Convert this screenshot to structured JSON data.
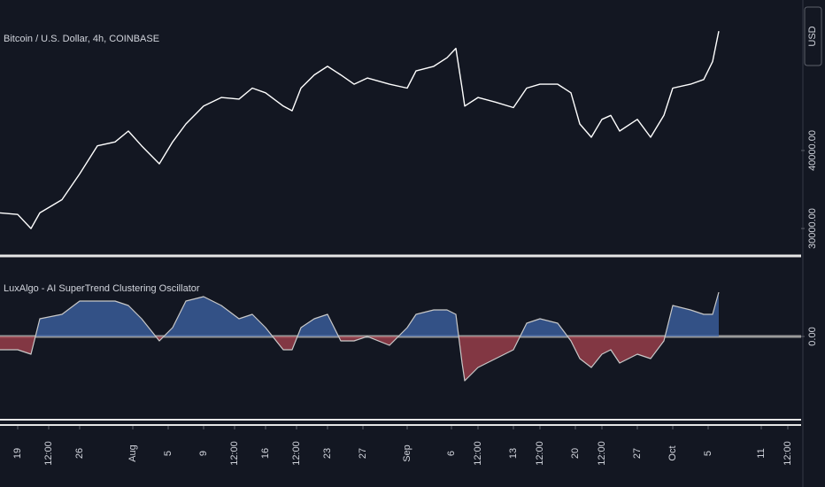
{
  "chart_data": [
    {
      "type": "line",
      "title": "Bitcoin / U.S. Dollar, 4h, COINBASE",
      "y_label": "USD",
      "x": [
        -2,
        0,
        1.5,
        2.5,
        5,
        7,
        9,
        11,
        12.5,
        14,
        16,
        17.5,
        19,
        21,
        23,
        25,
        26.5,
        28,
        30,
        31,
        32,
        33.5,
        35,
        36.5,
        38,
        39.5,
        42,
        44,
        45,
        47,
        48.5,
        49.5,
        50.2,
        50.5,
        52,
        54,
        56,
        57.5,
        59,
        61,
        62.5,
        63.5,
        64.8,
        66,
        67,
        68,
        70,
        71.5,
        73,
        74,
        76,
        77.5,
        78.5,
        79.2
      ],
      "series": [
        {
          "color": "#ffffff",
          "values": [
            32000,
            31800,
            30000,
            32000,
            33700,
            37000,
            40600,
            41100,
            42500,
            40600,
            38300,
            41100,
            43400,
            45700,
            46800,
            46600,
            48000,
            47400,
            45700,
            45100,
            48000,
            49700,
            50800,
            49700,
            48500,
            49300,
            48500,
            48000,
            50200,
            50800,
            51900,
            53100,
            48000,
            45700,
            46800,
            46200,
            45500,
            48000,
            48500,
            48500,
            47400,
            43400,
            41700,
            44000,
            44500,
            42500,
            44000,
            41700,
            44500,
            48000,
            48500,
            49100,
            51400,
            55300
          ]
        }
      ],
      "xlim": [
        -2,
        88.5
      ],
      "ylim": [
        26600,
        59300
      ],
      "yticks": [
        {
          "value": 30000,
          "label": "30000.00"
        },
        {
          "value": 40000,
          "label": "40000.00"
        }
      ]
    },
    {
      "type": "line",
      "title": "LuxAlgo - AI SuperTrend Clustering Oscillator",
      "x": [
        -2,
        0,
        1.5,
        2.5,
        5,
        7,
        9,
        11,
        12.5,
        14,
        16,
        17.5,
        19,
        21,
        23,
        25,
        26.5,
        28,
        30,
        31,
        32,
        33.5,
        35,
        36.5,
        38,
        39.5,
        42,
        44,
        45,
        47,
        48.5,
        49.5,
        50.2,
        50.5,
        52,
        54,
        56,
        57.5,
        59,
        61,
        62.5,
        63.5,
        64.8,
        66,
        67,
        68,
        70,
        71.5,
        73,
        74,
        76,
        77.5,
        78.5,
        79.2
      ],
      "series": [
        {
          "color": "#c8c8c8",
          "fill_colors": [
            "#3f66a8",
            "#a8434f"
          ],
          "values": [
            -15,
            -15,
            -20,
            20,
            25,
            40,
            40,
            40,
            35,
            20,
            -5,
            10,
            40,
            45,
            35,
            20,
            25,
            10,
            -15,
            -15,
            10,
            20,
            25,
            -5,
            -5,
            0,
            -10,
            10,
            25,
            30,
            30,
            25,
            -30,
            -50,
            -35,
            -25,
            -15,
            15,
            20,
            15,
            -5,
            -25,
            -35,
            -20,
            -15,
            -30,
            -20,
            -25,
            -5,
            35,
            30,
            25,
            25,
            50
          ]
        }
      ],
      "xlim": [
        -2,
        88.5
      ],
      "ylim": [
        -92,
        88
      ],
      "yticks": [
        {
          "value": 0,
          "label": "0.00"
        }
      ],
      "xticks": [
        {
          "value": 0,
          "label": "19"
        },
        {
          "value": 3.5,
          "label": "12:00"
        },
        {
          "value": 7,
          "label": "26"
        },
        {
          "value": 13,
          "label": "Aug"
        },
        {
          "value": 17,
          "label": "5"
        },
        {
          "value": 21,
          "label": "9"
        },
        {
          "value": 24.5,
          "label": "12:00"
        },
        {
          "value": 28,
          "label": "16"
        },
        {
          "value": 31.5,
          "label": "12:00"
        },
        {
          "value": 35,
          "label": "23"
        },
        {
          "value": 39,
          "label": "27"
        },
        {
          "value": 44,
          "label": "Sep"
        },
        {
          "value": 49,
          "label": "6"
        },
        {
          "value": 52,
          "label": "12:00"
        },
        {
          "value": 56,
          "label": "13"
        },
        {
          "value": 59,
          "label": "12:00"
        },
        {
          "value": 63,
          "label": "20"
        },
        {
          "value": 66,
          "label": "12:00"
        },
        {
          "value": 70,
          "label": "27"
        },
        {
          "value": 74,
          "label": "Oct"
        },
        {
          "value": 78,
          "label": "5"
        },
        {
          "value": 84,
          "label": "11"
        },
        {
          "value": 87,
          "label": "12:00"
        }
      ]
    }
  ]
}
